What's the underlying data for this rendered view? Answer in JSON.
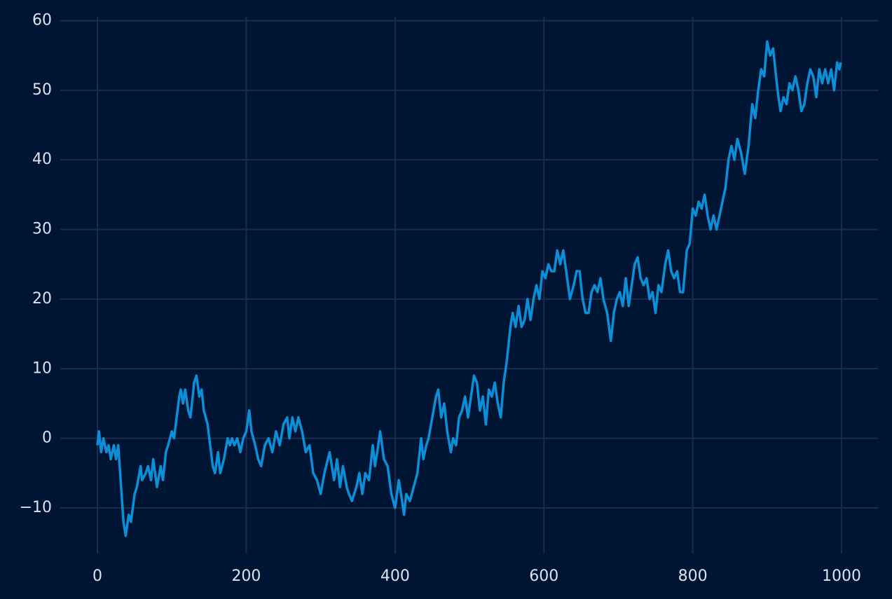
{
  "chart_data": {
    "type": "line",
    "x": [
      0,
      2,
      5,
      8,
      12,
      15,
      18,
      22,
      25,
      28,
      35,
      38,
      42,
      45,
      50,
      53,
      58,
      60,
      65,
      68,
      72,
      75,
      80,
      85,
      88,
      92,
      95,
      100,
      103,
      110,
      112,
      115,
      118,
      122,
      125,
      130,
      133,
      137,
      140,
      143,
      148,
      155,
      158,
      162,
      165,
      170,
      175,
      178,
      181,
      184,
      188,
      192,
      196,
      200,
      204,
      207,
      212,
      216,
      220,
      225,
      230,
      235,
      240,
      245,
      250,
      255,
      258,
      262,
      266,
      270,
      275,
      280,
      285,
      290,
      295,
      300,
      305,
      312,
      318,
      322,
      326,
      330,
      335,
      338,
      342,
      348,
      352,
      356,
      360,
      365,
      370,
      373,
      376,
      380,
      385,
      390,
      395,
      400,
      405,
      408,
      412,
      415,
      420,
      425,
      430,
      435,
      438,
      442,
      445,
      450,
      455,
      458,
      462,
      466,
      470,
      475,
      478,
      482,
      486,
      490,
      494,
      498,
      502,
      506,
      510,
      514,
      518,
      522,
      526,
      530,
      534,
      538,
      542,
      546,
      550,
      555,
      558,
      562,
      566,
      570,
      574,
      578,
      582,
      586,
      590,
      594,
      598,
      602,
      606,
      610,
      614,
      618,
      622,
      626,
      630,
      635,
      640,
      644,
      648,
      652,
      656,
      660,
      664,
      668,
      672,
      676,
      680,
      685,
      690,
      694,
      698,
      702,
      706,
      710,
      714,
      718,
      722,
      726,
      730,
      734,
      738,
      742,
      746,
      750,
      754,
      758,
      763,
      767,
      771,
      775,
      779,
      783,
      787,
      792,
      796,
      800,
      804,
      808,
      812,
      816,
      820,
      824,
      828,
      832,
      836,
      840,
      844,
      848,
      852,
      856,
      860,
      865,
      870,
      875,
      880,
      884,
      888,
      892,
      896,
      900,
      904,
      908,
      914,
      918,
      922,
      926,
      930,
      934,
      938,
      942,
      946,
      950,
      954,
      958,
      962,
      966,
      970,
      974,
      978,
      982,
      986,
      990,
      994,
      997,
      999
    ],
    "series": [
      {
        "color": "#0a8fd8",
        "values": [
          -1,
          1,
          -2,
          0,
          -2,
          -1,
          -3,
          -1,
          -3,
          -1,
          -12,
          -14,
          -11,
          -12,
          -8,
          -7,
          -4,
          -6,
          -5,
          -4,
          -6,
          -3,
          -7,
          -4,
          -6,
          -2,
          -1,
          1,
          0,
          6,
          7,
          5,
          7,
          4,
          3,
          8,
          9,
          6,
          7,
          4,
          2,
          -4,
          -5,
          -2,
          -5,
          -3,
          0,
          -1,
          0,
          -1,
          0,
          -2,
          0,
          1,
          4,
          1,
          -1,
          -3,
          -4,
          -1,
          0,
          -2,
          1,
          -1,
          2,
          3,
          0,
          3,
          1,
          3,
          1,
          -2,
          -1,
          -5,
          -6,
          -8,
          -5,
          -2,
          -6,
          -3,
          -7,
          -4,
          -7,
          -8,
          -9,
          -7,
          -5,
          -8,
          -5,
          -6,
          -1,
          -4,
          -2,
          1,
          -3,
          -4,
          -8,
          -10,
          -6,
          -8,
          -11,
          -8,
          -9,
          -7,
          -5,
          0,
          -3,
          -1,
          0,
          3,
          6,
          7,
          3,
          5,
          1,
          -2,
          0,
          -1,
          3,
          4,
          6,
          3,
          6,
          9,
          8,
          4,
          6,
          2,
          7,
          6,
          8,
          5,
          3,
          8,
          11,
          16,
          18,
          16,
          19,
          16,
          17,
          20,
          17,
          20,
          22,
          20,
          24,
          23,
          25,
          24,
          24,
          27,
          25,
          27,
          24,
          20,
          22,
          24,
          24,
          20,
          18,
          18,
          21,
          22,
          21,
          23,
          20,
          18,
          14,
          18,
          20,
          21,
          19,
          23,
          19,
          22,
          25,
          26,
          23,
          22,
          23,
          20,
          21,
          18,
          22,
          21,
          25,
          27,
          24,
          23,
          24,
          21,
          21,
          27,
          28,
          33,
          32,
          34,
          33,
          35,
          32,
          30,
          32,
          30,
          32,
          34,
          36,
          40,
          42,
          40,
          43,
          41,
          38,
          42,
          48,
          46,
          50,
          53,
          52,
          57,
          55,
          56,
          50,
          47,
          49,
          48,
          51,
          50,
          52,
          50,
          47,
          48,
          51,
          53,
          52,
          49,
          53,
          51,
          53,
          51,
          53,
          50,
          54,
          53,
          54
        ]
      }
    ],
    "xlim": [
      -49.95,
      1048.95
    ],
    "ylim": [
      -17.55,
      60.55
    ],
    "xticks": [
      0,
      200,
      400,
      600,
      800,
      1000
    ],
    "yticks": [
      {
        "value": -10,
        "label": "−10"
      },
      0,
      10,
      20,
      30,
      40,
      50,
      60
    ],
    "grid": true
  }
}
